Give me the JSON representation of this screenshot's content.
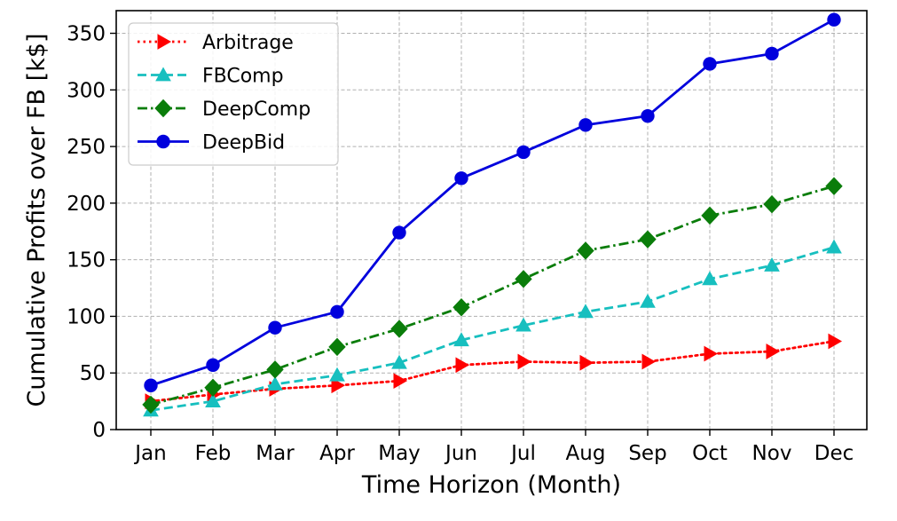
{
  "chart_data": {
    "type": "line",
    "xlabel": "Time Horizon (Month)",
    "ylabel": "Cumulative Profits over FB [k$]",
    "categories": [
      "Jan",
      "Feb",
      "Mar",
      "Apr",
      "May",
      "Jun",
      "Jul",
      "Aug",
      "Sep",
      "Oct",
      "Nov",
      "Dec"
    ],
    "ylim": [
      0,
      370
    ],
    "yticks": [
      0,
      50,
      100,
      150,
      200,
      250,
      300,
      350
    ],
    "grid": true,
    "legend_position": "top-left",
    "series": [
      {
        "name": "Arbitrage",
        "color": "#ff0000",
        "marker": "triangle-right",
        "line_style": "dotted",
        "values": [
          25,
          31,
          36,
          39,
          43,
          57,
          60,
          59,
          60,
          67,
          69,
          78
        ]
      },
      {
        "name": "FBComp",
        "color": "#17bfbf",
        "marker": "triangle-up",
        "line_style": "dashed",
        "values": [
          17,
          25,
          40,
          48,
          59,
          79,
          92,
          104,
          113,
          133,
          145,
          161
        ]
      },
      {
        "name": "DeepComp",
        "color": "#0a7d0a",
        "marker": "diamond",
        "line_style": "dashdot",
        "values": [
          22,
          37,
          53,
          73,
          89,
          108,
          133,
          158,
          168,
          189,
          199,
          215
        ]
      },
      {
        "name": "DeepBid",
        "color": "#0000dd",
        "marker": "circle",
        "line_style": "solid",
        "values": [
          39,
          57,
          90,
          104,
          174,
          222,
          245,
          269,
          277,
          323,
          332,
          362
        ]
      }
    ]
  }
}
